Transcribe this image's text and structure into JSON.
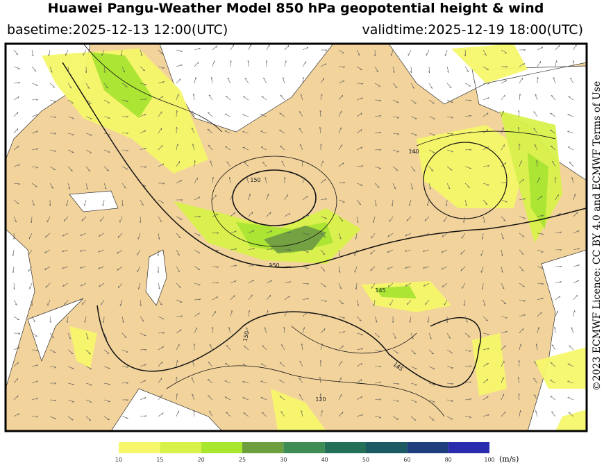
{
  "header": {
    "title": "Huawei Pangu-Weather Model 850 hPa geopotential height & wind",
    "basetime": "basetime:2025-12-13 12:00(UTC)",
    "validtime": "validtime:2025-12-19 18:00(UTC)"
  },
  "map": {
    "contour_labels": [
      "150",
      "140",
      "150",
      "145",
      "150",
      "145",
      "120"
    ]
  },
  "colorbar": {
    "bounds": [
      10,
      15,
      20,
      25,
      30,
      40,
      50,
      60,
      80,
      100
    ],
    "colors": [
      "#f6f76a",
      "#d9f24a",
      "#a9e62e",
      "#6e9f3e",
      "#3f8c55",
      "#246f57",
      "#1b5a63",
      "#1e3f7c",
      "#2a2cae"
    ],
    "unit": "(m/s)"
  },
  "credit": "©2023 ECMWF Licence: CC BY 4.0 and ECMWF Terms of Use"
}
